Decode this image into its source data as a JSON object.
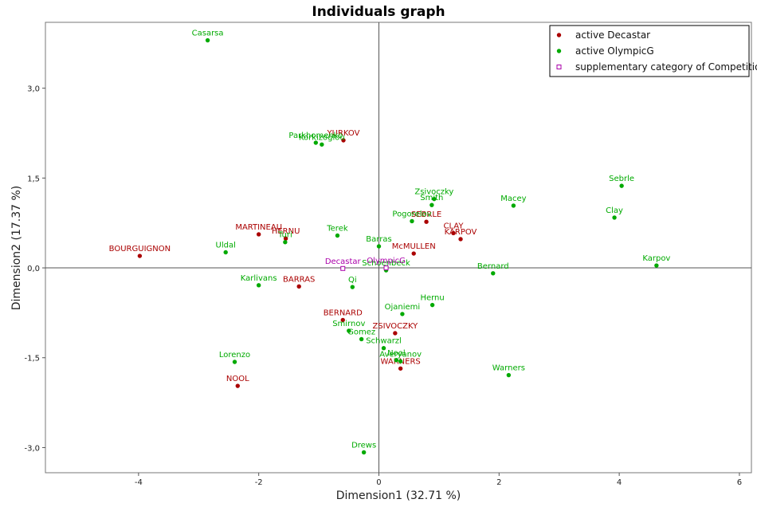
{
  "chart_data": {
    "type": "scatter",
    "title": "Individuals graph",
    "xlabel": "Dimension1 (32.71 %)",
    "ylabel": "Dimension2 (17.37 %)",
    "xlim": [
      -5.55,
      6.2
    ],
    "ylim": [
      -3.42,
      4.1
    ],
    "x_ticks": [
      {
        "value": -4,
        "label": "-4"
      },
      {
        "value": -2,
        "label": "-2"
      },
      {
        "value": 0,
        "label": "0"
      },
      {
        "value": 2,
        "label": "2"
      },
      {
        "value": 4,
        "label": "4"
      },
      {
        "value": 6,
        "label": "6"
      }
    ],
    "y_ticks": [
      {
        "value": 3,
        "label": "3,0"
      },
      {
        "value": 1.5,
        "label": "1,5"
      },
      {
        "value": 0,
        "label": "0,0"
      },
      {
        "value": -1.5,
        "label": "-1,5"
      },
      {
        "value": -3,
        "label": "-3,0"
      }
    ],
    "legend_position": "top-right",
    "legend": [
      {
        "label": "active Decastar",
        "color": "#aa0000",
        "marker": "dot"
      },
      {
        "label": "active OlympicG",
        "color": "#00aa00",
        "marker": "dot"
      },
      {
        "label": "supplementary category of Competition",
        "color": "#aa00aa",
        "marker": "square"
      }
    ],
    "series": [
      {
        "name": "active Decastar",
        "color": "#aa0000",
        "text_color": "#aa0000",
        "points": [
          {
            "label": "YURKOV",
            "x": -0.59,
            "y": 2.13
          },
          {
            "label": "MARTINEAU",
            "x": -2.0,
            "y": 0.56
          },
          {
            "label": "HERNU",
            "x": -1.55,
            "y": 0.49
          },
          {
            "label": "BOURGUIGNON",
            "x": -3.98,
            "y": 0.2
          },
          {
            "label": "BARRAS",
            "x": -1.33,
            "y": -0.31
          },
          {
            "label": "BERNARD",
            "x": -0.6,
            "y": -0.87
          },
          {
            "label": "ZSIVOCZKY",
            "x": 0.27,
            "y": -1.09
          },
          {
            "label": "NOOL",
            "x": -2.35,
            "y": -1.97
          },
          {
            "label": "WARNERS",
            "x": 0.36,
            "y": -1.68
          },
          {
            "label": "SEBRLE",
            "x": 0.79,
            "y": 0.77
          },
          {
            "label": "CLAY",
            "x": 1.24,
            "y": 0.58
          },
          {
            "label": "KARPOV",
            "x": 1.36,
            "y": 0.48
          },
          {
            "label": "McMULLEN",
            "x": 0.58,
            "y": 0.24
          }
        ]
      },
      {
        "name": "active OlympicG",
        "color": "#00aa00",
        "text_color": "#00aa00",
        "points": [
          {
            "label": "Casarsa",
            "x": -2.85,
            "y": 3.8
          },
          {
            "label": "Parkhomenko",
            "x": -1.05,
            "y": 2.09
          },
          {
            "label": "Korkizoglou",
            "x": -0.95,
            "y": 2.06
          },
          {
            "label": "Uldal",
            "x": -2.55,
            "y": 0.26
          },
          {
            "label": "Turi",
            "x": -1.56,
            "y": 0.43
          },
          {
            "label": "Terek",
            "x": -0.69,
            "y": 0.54
          },
          {
            "label": "Barras",
            "x": 0.0,
            "y": 0.36
          },
          {
            "label": "Schoenbeck",
            "x": 0.12,
            "y": -0.04
          },
          {
            "label": "Karlivans",
            "x": -2.0,
            "y": -0.29
          },
          {
            "label": "Qi",
            "x": -0.44,
            "y": -0.32
          },
          {
            "label": "Ojaniemi",
            "x": 0.39,
            "y": -0.77
          },
          {
            "label": "Hernu",
            "x": 0.89,
            "y": -0.62
          },
          {
            "label": "Smirnov",
            "x": -0.5,
            "y": -1.05
          },
          {
            "label": "Gomez",
            "x": -0.29,
            "y": -1.19
          },
          {
            "label": "Schwarzl",
            "x": 0.08,
            "y": -1.34
          },
          {
            "label": "Nool",
            "x": 0.29,
            "y": -1.54
          },
          {
            "label": "Averyanov",
            "x": 0.36,
            "y": -1.56
          },
          {
            "label": "Lorenzo",
            "x": -2.4,
            "y": -1.57
          },
          {
            "label": "Drews",
            "x": -0.25,
            "y": -3.08
          },
          {
            "label": "Zsivoczky",
            "x": 0.92,
            "y": 1.15
          },
          {
            "label": "Smith",
            "x": 0.88,
            "y": 1.05
          },
          {
            "label": "Pogorelov",
            "x": 0.55,
            "y": 0.78
          },
          {
            "label": "Macey",
            "x": 2.24,
            "y": 1.04
          },
          {
            "label": "Bernard",
            "x": 1.9,
            "y": -0.09
          },
          {
            "label": "Warners",
            "x": 2.16,
            "y": -1.79
          },
          {
            "label": "Sebrle",
            "x": 4.04,
            "y": 1.37
          },
          {
            "label": "Clay",
            "x": 3.92,
            "y": 0.84
          },
          {
            "label": "Karpov",
            "x": 4.62,
            "y": 0.04
          }
        ]
      },
      {
        "name": "supplementary category of Competition",
        "color": "#aa00aa",
        "text_color": "#aa00aa",
        "marker": "square",
        "points": [
          {
            "label": "Decastar",
            "x": -0.6,
            "y": -0.01
          },
          {
            "label": "OlympicG",
            "x": 0.12,
            "y": 0.0
          }
        ]
      }
    ]
  }
}
